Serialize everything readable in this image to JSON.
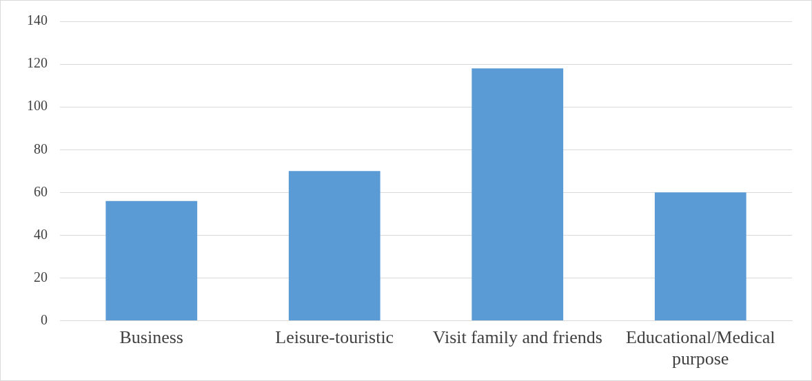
{
  "chart_data": {
    "type": "bar",
    "categories": [
      "Business",
      "Leisure-touristic",
      "Visit family and friends",
      "Educational/Medical purpose"
    ],
    "values": [
      56,
      70,
      118,
      60
    ],
    "color": "#5b9bd5",
    "ylim": [
      0,
      140
    ],
    "yticks": [
      0,
      20,
      40,
      60,
      80,
      100,
      120,
      140
    ],
    "grid": "y",
    "legend": false
  }
}
